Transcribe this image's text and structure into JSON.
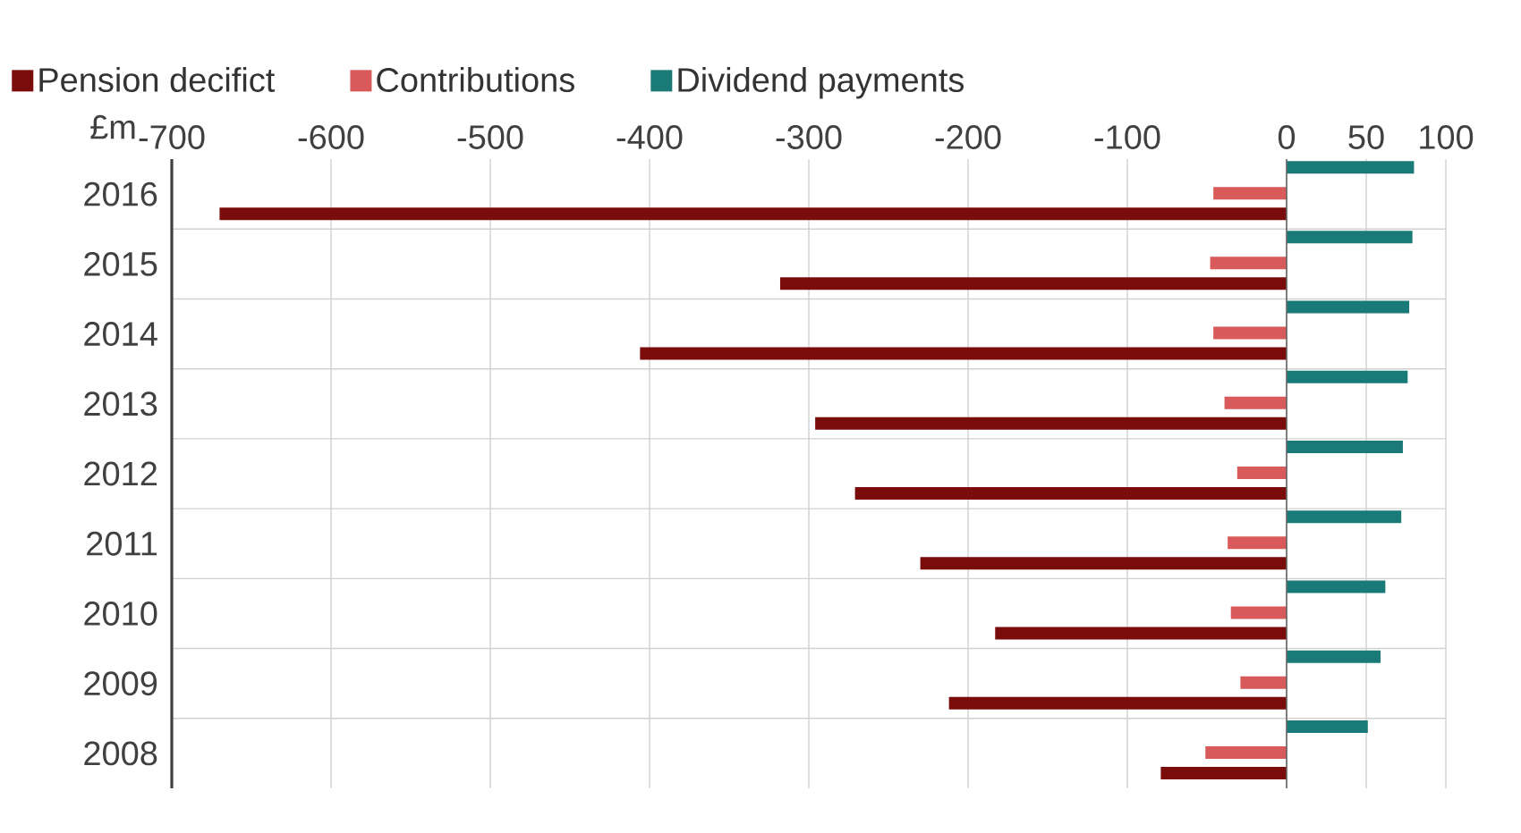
{
  "chart_data": {
    "type": "bar",
    "orientation": "horizontal",
    "xlabel": "£m",
    "categories": [
      "2016",
      "2015",
      "2014",
      "2013",
      "2012",
      "2011",
      "2010",
      "2009",
      "2008"
    ],
    "series": [
      {
        "name": "Pension decifict",
        "color": "#7a0c0c",
        "values": [
          -670,
          -318,
          -406,
          -296,
          -271,
          -230,
          -183,
          -212,
          -79
        ]
      },
      {
        "name": "Contributions",
        "color": "#d85a5a",
        "values": [
          -46,
          -48,
          -46,
          -39,
          -31,
          -37,
          -35,
          -29,
          -51
        ]
      },
      {
        "name": "Dividend payments",
        "color": "#1a7a78",
        "values": [
          80,
          79,
          77,
          76,
          73,
          72,
          62,
          59,
          51
        ]
      }
    ],
    "xlim": [
      -700,
      100
    ],
    "xticks": [
      -700,
      -600,
      -500,
      -400,
      -300,
      -200,
      -100,
      0,
      50,
      100
    ],
    "grid": true,
    "legend": "top",
    "marker": "none"
  }
}
